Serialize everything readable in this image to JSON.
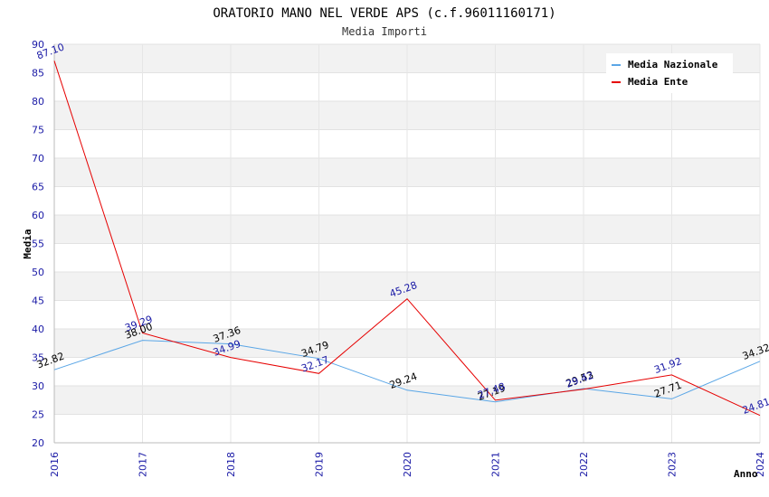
{
  "chart_data": {
    "type": "line",
    "title": "ORATORIO MANO NEL VERDE APS (c.f.96011160171)",
    "subtitle": "Media Importi",
    "xlabel": "Anno",
    "ylabel": "Media",
    "ylim": [
      20,
      90
    ],
    "yticks": [
      "20",
      "25",
      "30",
      "35",
      "40",
      "45",
      "50",
      "55",
      "60",
      "65",
      "70",
      "75",
      "80",
      "85",
      "90"
    ],
    "categories": [
      "2016",
      "2017",
      "2018",
      "2019",
      "2020",
      "2021",
      "2022",
      "2023",
      "2024"
    ],
    "series": [
      {
        "name": "Media Nazionale",
        "color": "#5aa6e6",
        "label_color": "#000000",
        "values": [
          32.82,
          38.0,
          37.36,
          34.79,
          29.24,
          27.19,
          29.53,
          27.71,
          34.32
        ],
        "labels": [
          "32.82",
          "38.00",
          "37.36",
          "34.79",
          "29.24",
          "27.19",
          "29.53",
          "27.71",
          "34.32"
        ]
      },
      {
        "name": "Media Ente",
        "color": "#e60000",
        "label_color": "#1a1aa6",
        "values": [
          87.1,
          39.29,
          34.99,
          32.17,
          45.28,
          27.48,
          29.42,
          31.92,
          24.81
        ],
        "labels": [
          "87.10",
          "39.29",
          "34.99",
          "32.17",
          "45.28",
          "27.48",
          "29.42",
          "31.92",
          "24.81"
        ]
      }
    ],
    "grid": true,
    "legend_position": "top-right"
  }
}
